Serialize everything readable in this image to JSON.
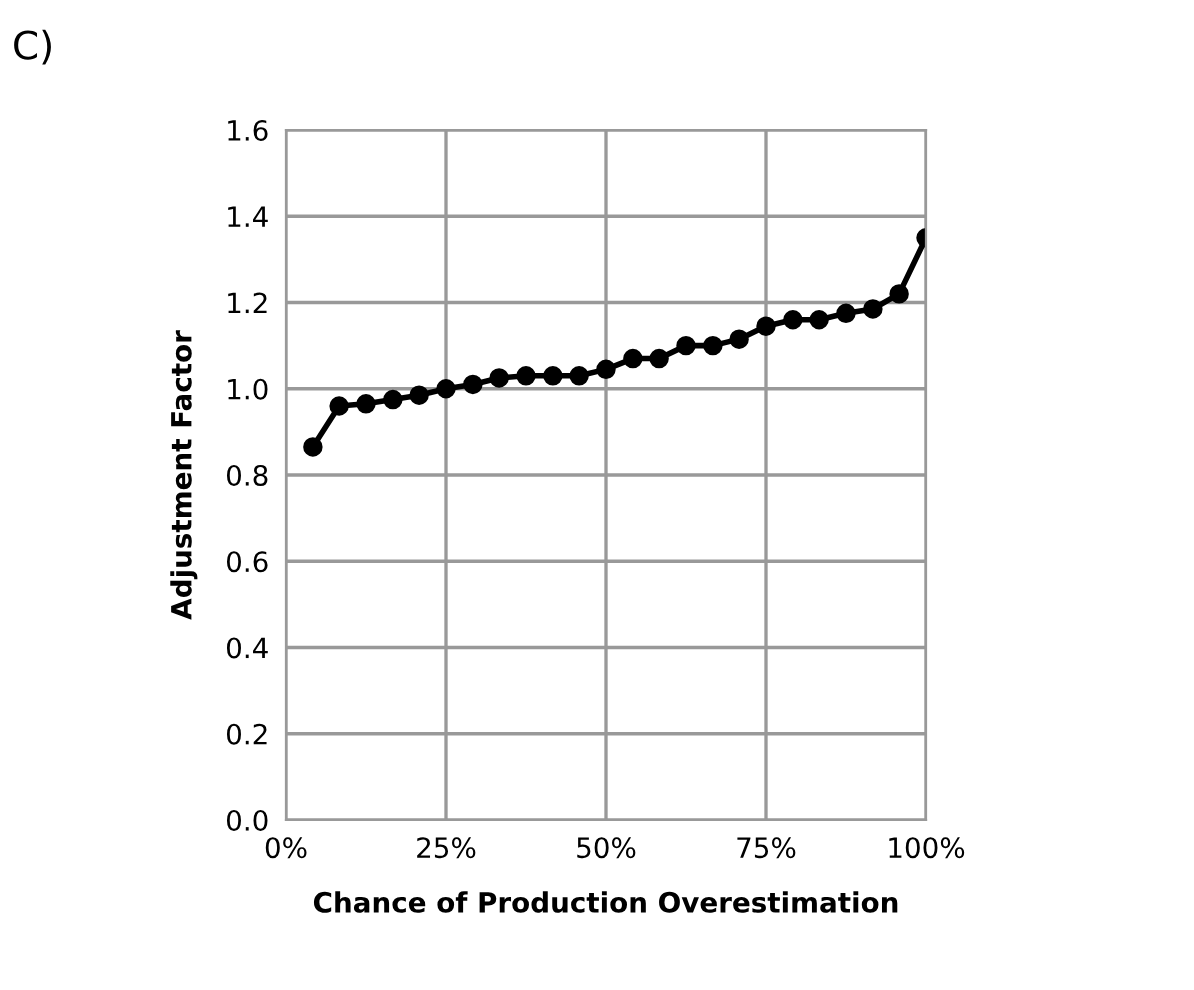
{
  "chart_data": {
    "type": "line",
    "title": "C)",
    "xlabel": "Chance of Production Overestimation",
    "ylabel": "Adjustment Factor",
    "x": [
      0.042,
      0.083,
      0.125,
      0.167,
      0.208,
      0.25,
      0.292,
      0.333,
      0.375,
      0.417,
      0.458,
      0.5,
      0.542,
      0.583,
      0.625,
      0.667,
      0.708,
      0.75,
      0.792,
      0.833,
      0.875,
      0.917,
      0.958,
      1.0
    ],
    "series": [
      {
        "color": "#000000",
        "values": [
          0.865,
          0.96,
          0.965,
          0.975,
          0.985,
          1.0,
          1.01,
          1.025,
          1.03,
          1.03,
          1.03,
          1.045,
          1.07,
          1.07,
          1.1,
          1.1,
          1.115,
          1.145,
          1.16,
          1.16,
          1.175,
          1.185,
          1.22,
          1.35
        ]
      }
    ],
    "xlim": [
      0,
      1
    ],
    "xticks": [
      {
        "value": 0,
        "label": "0%"
      },
      {
        "value": 0.25,
        "label": "25%"
      },
      {
        "value": 0.5,
        "label": "50%"
      },
      {
        "value": 0.75,
        "label": "75%"
      },
      {
        "value": 1,
        "label": "100%"
      }
    ],
    "ylim": [
      0,
      1.6
    ],
    "yticks": [
      {
        "value": 0,
        "label": "0.0"
      },
      {
        "value": 0.2,
        "label": "0.2"
      },
      {
        "value": 0.4,
        "label": "0.4"
      },
      {
        "value": 0.6,
        "label": "0.6"
      },
      {
        "value": 0.8,
        "label": "0.8"
      },
      {
        "value": 1.0,
        "label": "1.0"
      },
      {
        "value": 1.2,
        "label": "1.2"
      },
      {
        "value": 1.4,
        "label": "1.4"
      },
      {
        "value": 1.6,
        "label": "1.6"
      }
    ],
    "grid": true,
    "marker": "circle",
    "line_style": "solid",
    "legend": false
  }
}
